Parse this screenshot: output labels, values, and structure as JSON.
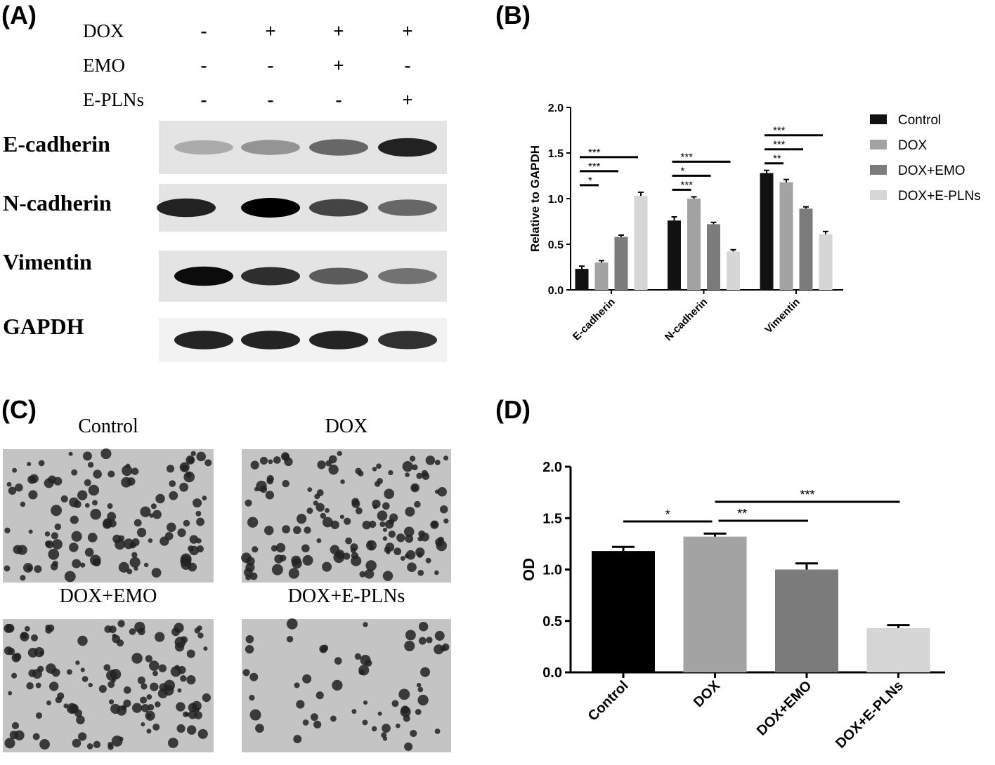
{
  "panel_labels": [
    "(A)",
    "(B)",
    "(C)",
    "(D)"
  ],
  "blot": {
    "treatments": [
      {
        "name": "DOX",
        "signs": [
          "-",
          "+",
          "+",
          "+"
        ]
      },
      {
        "name": "EMO",
        "signs": [
          "-",
          "-",
          "+",
          "-"
        ]
      },
      {
        "name": "E-PLNs",
        "signs": [
          "-",
          "-",
          "-",
          "+"
        ]
      }
    ],
    "proteins": [
      "E-cadherin",
      "N-cadherin",
      "Vimentin",
      "GAPDH"
    ]
  },
  "micrographs": [
    "Control",
    "DOX",
    "DOX+EMO",
    "DOX+E-PLNs"
  ],
  "chart_data": [
    {
      "type": "grouped-bar",
      "y_label": "Relative to GAPDH",
      "categories": [
        "E-cadherin",
        "N-cadherin",
        "Vimentin"
      ],
      "series": [
        {
          "name": "Control",
          "color": "#111111",
          "values": [
            0.23,
            0.76,
            1.28
          ],
          "errors": [
            0.03,
            0.04,
            0.03
          ]
        },
        {
          "name": "DOX",
          "color": "#a3a3a3",
          "values": [
            0.3,
            1.0,
            1.18
          ],
          "errors": [
            0.02,
            0.02,
            0.03
          ]
        },
        {
          "name": "DOX+EMO",
          "color": "#7b7b7b",
          "values": [
            0.58,
            0.72,
            0.89
          ],
          "errors": [
            0.02,
            0.02,
            0.02
          ]
        },
        {
          "name": "DOX+E-PLNs",
          "color": "#d6d6d6",
          "values": [
            1.03,
            0.42,
            0.61
          ],
          "errors": [
            0.04,
            0.02,
            0.03
          ]
        }
      ],
      "annotations": [
        [
          "*",
          "***",
          "***"
        ],
        [
          "***",
          "*",
          "***"
        ],
        [
          "**",
          "***",
          "***"
        ]
      ],
      "ylim": [
        0,
        2
      ],
      "yticks": [
        {
          "value": 0,
          "label": "0.0"
        },
        0.5,
        {
          "value": 1,
          "label": "1.0"
        },
        1.5,
        {
          "value": 2,
          "label": "2.0"
        }
      ],
      "legend": "right"
    },
    {
      "type": "bar",
      "y_label": "OD",
      "categories": [
        "Control",
        "DOX",
        "DOX+EMO",
        "DOX+E-PLNs"
      ],
      "values": [
        1.18,
        1.32,
        1.0,
        0.43
      ],
      "errors": [
        0.04,
        0.03,
        0.06,
        0.03
      ],
      "colors": [
        "#000000",
        "#a3a3a3",
        "#7b7b7b",
        "#d6d6d6"
      ],
      "annotations": [
        "*",
        "**",
        "***"
      ],
      "ylim": [
        0,
        2
      ],
      "yticks": [
        {
          "value": 0,
          "label": "0.0"
        },
        0.5,
        {
          "value": 1,
          "label": "1.0"
        },
        1.5,
        {
          "value": 2,
          "label": "2.0"
        }
      ]
    }
  ]
}
